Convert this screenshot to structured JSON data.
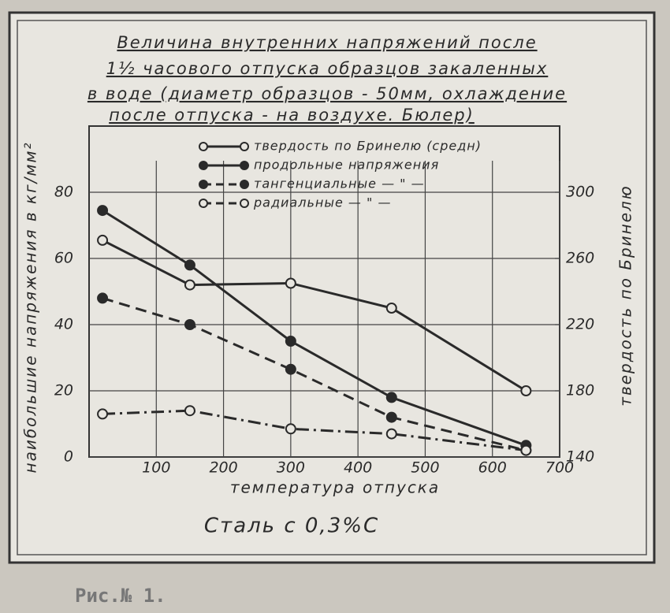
{
  "chart_data": {
    "type": "line",
    "title_lines": [
      "Величина внутренних напряжений после",
      "1½ часового отпуска образцов закаленных",
      "в воде (диаметр образцов - 50мм, охлаждение",
      "после отпуска - на воздухе. Бюлер)"
    ],
    "xlabel": "температура отпуска",
    "ylabel": "наибольшие напряжения в кг/мм²",
    "y2label": "твердость по Бринелю",
    "subtitle": "Сталь с 0,3%С",
    "caption": "Рис.№ 1.",
    "x": [
      20,
      150,
      300,
      450,
      650
    ],
    "xlim": [
      0,
      700
    ],
    "xticks": [
      100,
      200,
      300,
      400,
      500,
      600,
      700
    ],
    "ylim": [
      0,
      100
    ],
    "yticks": [
      0,
      20,
      40,
      60,
      80
    ],
    "y2lim": [
      140,
      340
    ],
    "y2ticks": [
      140,
      180,
      220,
      260,
      300
    ],
    "grid": true,
    "legend": "top",
    "series": [
      {
        "name": "твердость по Бринелю (средн)",
        "color": "#2a2a2a",
        "axis": "y2",
        "line_style": "solid",
        "marker": "open",
        "values": [
          271,
          244,
          245,
          230,
          180
        ]
      },
      {
        "name": "продольные напряжения",
        "color": "#2a2a2a",
        "line_style": "solid",
        "marker": "filled",
        "values": [
          74.5,
          58,
          35,
          18,
          3.5
        ]
      },
      {
        "name": "тангенциальные — \" —",
        "color": "#2a2a2a",
        "line_style": "dashed",
        "marker": "filled",
        "values": [
          48,
          40,
          26.5,
          12,
          2
        ]
      },
      {
        "name": "радиальные — \" —",
        "color": "#2a2a2a",
        "line_style": "dashdot",
        "marker": "open",
        "values": [
          13,
          14,
          8.5,
          7,
          2
        ]
      }
    ]
  }
}
